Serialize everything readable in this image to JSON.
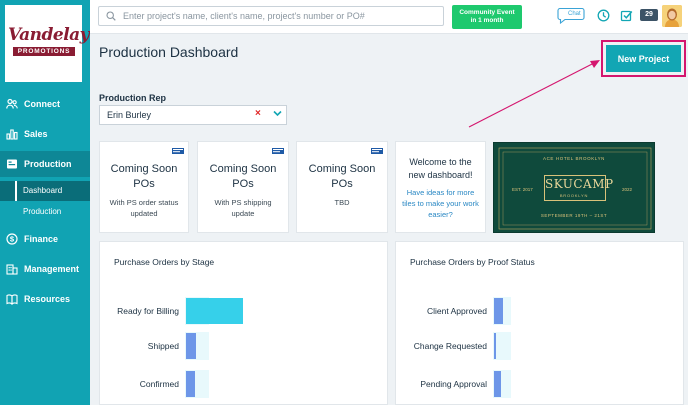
{
  "brand": {
    "name": "Vandelay",
    "tagline": "PROMOTIONS",
    "primary_color": "#11a3b3",
    "accent_color": "#d4166e"
  },
  "sidebar": {
    "items": [
      {
        "label": "Connect",
        "icon": "people-icon"
      },
      {
        "label": "Sales",
        "icon": "bar-chart-icon"
      },
      {
        "label": "Production",
        "icon": "production-icon"
      },
      {
        "label": "Finance",
        "icon": "dollar-icon"
      },
      {
        "label": "Management",
        "icon": "building-icon"
      },
      {
        "label": "Resources",
        "icon": "book-icon"
      }
    ],
    "subitems": [
      {
        "label": "Dashboard"
      },
      {
        "label": "Production"
      }
    ]
  },
  "topbar": {
    "search_placeholder": "Enter project's name, client's name, project's number or PO#",
    "community_line1": "Community Event",
    "community_line2": "in 1 month",
    "chat_label": "Chat",
    "notification_count": "29"
  },
  "page": {
    "title": "Production Dashboard",
    "new_project_label": "New Project"
  },
  "filter": {
    "label": "Production Rep",
    "value": "Erin Burley",
    "clear_symbol": "×"
  },
  "tiles": [
    {
      "title": "Coming Soon",
      "subtitle": "POs",
      "description": "With PS order status updated"
    },
    {
      "title": "Coming Soon",
      "subtitle": "POs",
      "description": "With PS shipping update"
    },
    {
      "title": "Coming Soon",
      "subtitle": "POs",
      "description": "TBD"
    }
  ],
  "welcome": {
    "title": "Welcome to the new dashboard!",
    "link": "Have ideas for more tiles to make your work easier?"
  },
  "banner": {
    "header": "ACE HOTEL BROOKLYN",
    "name": "SKUCAMP",
    "city": "BROOKLYN",
    "est": "EST. 2017",
    "year": "2022",
    "dates": "SEPTEMBER 19TH – 21ST"
  },
  "panels": [
    {
      "title": "Purchase Orders by Stage",
      "rows": [
        {
          "label": "Ready for Billing",
          "value": 1.0
        },
        {
          "label": "Shipped",
          "value": 0.18
        },
        {
          "label": "Confirmed",
          "value": 0.15
        }
      ]
    },
    {
      "title": "Purchase Orders by Proof Status",
      "rows": [
        {
          "label": "Client Approved",
          "value": 0.5
        },
        {
          "label": "Change Requested",
          "value": 0.1
        },
        {
          "label": "Pending Approval",
          "value": 0.4
        }
      ]
    }
  ]
}
